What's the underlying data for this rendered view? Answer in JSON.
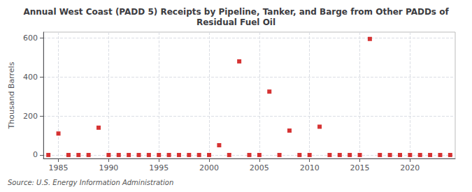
{
  "chart_data": {
    "type": "scatter",
    "title": "Annual West Coast (PADD 5) Receipts by Pipeline, Tanker, and Barge from Other PADDs of\nResidual Fuel Oil",
    "ylabel": "Thousand Barrels",
    "source": "Source: U.S. Energy Information Administration",
    "color": "#cc0000",
    "marker": "square",
    "grid": true,
    "xlim": [
      1983.5,
      2024.5
    ],
    "xticks": [
      1985,
      1990,
      1995,
      2000,
      2005,
      2010,
      2015,
      2020
    ],
    "ylim": [
      -18,
      630
    ],
    "yticks": [
      0,
      200,
      400,
      600
    ],
    "x": [
      1984,
      1985,
      1986,
      1987,
      1988,
      1989,
      1990,
      1991,
      1992,
      1993,
      1994,
      1995,
      1996,
      1997,
      1998,
      1999,
      2000,
      2001,
      2002,
      2003,
      2004,
      2005,
      2006,
      2007,
      2008,
      2009,
      2010,
      2011,
      2012,
      2013,
      2014,
      2015,
      2016,
      2017,
      2018,
      2019,
      2020,
      2021,
      2022,
      2023,
      2024
    ],
    "values": [
      0,
      110,
      0,
      0,
      0,
      140,
      0,
      0,
      0,
      0,
      0,
      0,
      0,
      0,
      0,
      0,
      0,
      50,
      0,
      480,
      0,
      0,
      325,
      0,
      125,
      0,
      0,
      145,
      0,
      0,
      0,
      0,
      595,
      0,
      0,
      0,
      0,
      0,
      0,
      0,
      0
    ]
  }
}
